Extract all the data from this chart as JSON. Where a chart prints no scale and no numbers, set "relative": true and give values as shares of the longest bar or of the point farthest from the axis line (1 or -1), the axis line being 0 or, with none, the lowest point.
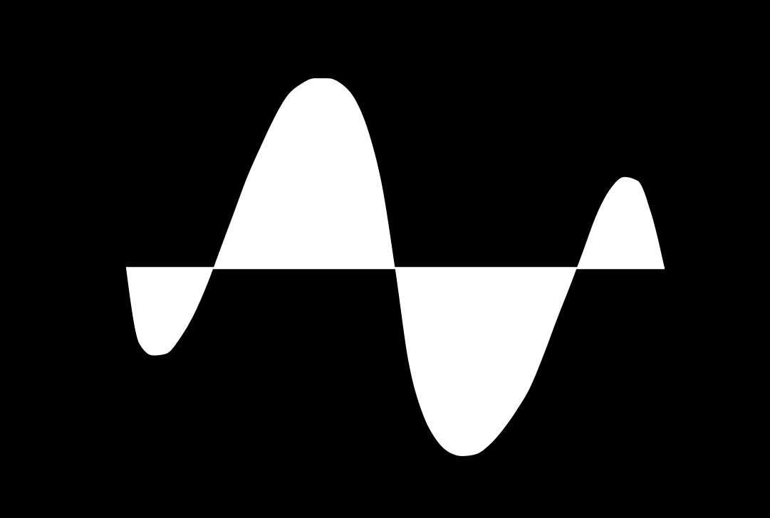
{
  "chart_data": {
    "type": "area",
    "relative": true,
    "color": "#ffffff",
    "categories": [
      null,
      null,
      null,
      null,
      null,
      null,
      null,
      null,
      null,
      null,
      null,
      null,
      null,
      null,
      null,
      null,
      null,
      null,
      null,
      null,
      null,
      null,
      null,
      null,
      null,
      null,
      null,
      null,
      null,
      null,
      null,
      null,
      null,
      null,
      null,
      null,
      null,
      null,
      null,
      null,
      null
    ],
    "values": [
      0,
      -0.4,
      -0.46,
      -0.45,
      -0.37,
      -0.25,
      -0.09,
      0.1,
      0.29,
      0.48,
      0.64,
      0.79,
      0.91,
      0.97,
      1.0,
      1.0,
      0.97,
      0.89,
      0.72,
      0.44,
      -0.01,
      -0.5,
      -0.76,
      -0.9,
      -0.97,
      -0.99,
      -0.98,
      -0.93,
      -0.85,
      -0.75,
      -0.63,
      -0.46,
      -0.27,
      -0.09,
      0.1,
      0.29,
      0.42,
      0.48,
      0.46,
      0.29,
      0
    ]
  }
}
